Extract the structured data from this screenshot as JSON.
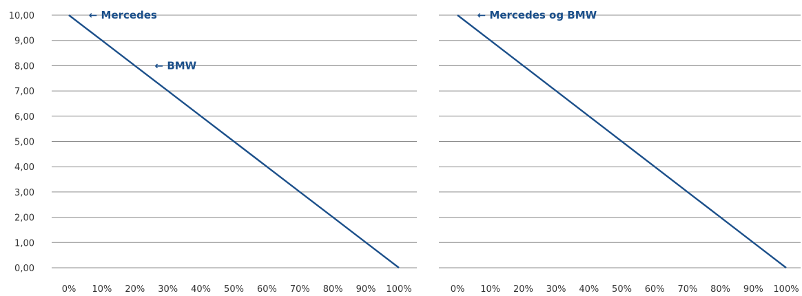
{
  "chart_data": [
    {
      "type": "line",
      "title": "",
      "xlabel": "",
      "ylabel": "",
      "x": [
        0,
        10,
        20,
        30,
        40,
        50,
        60,
        70,
        80,
        90,
        100
      ],
      "x_tick_labels": [
        "0%",
        "10%",
        "20%",
        "30%",
        "40%",
        "50%",
        "60%",
        "70%",
        "80%",
        "90%",
        "100%"
      ],
      "y_tick_labels": [
        "0,00",
        "1,00",
        "2,00",
        "3,00",
        "4,00",
        "5,00",
        "6,00",
        "7,00",
        "8,00",
        "9,00",
        "10,00"
      ],
      "ylim": [
        0,
        10
      ],
      "xlim": [
        0,
        100
      ],
      "grid": true,
      "series": [
        {
          "values": [
            10,
            9,
            8,
            7,
            6,
            5,
            4,
            3,
            2,
            1,
            0
          ]
        }
      ],
      "annotations": [
        {
          "text": "← Mercedes",
          "x": 6,
          "y": 10
        },
        {
          "text": "← BMW",
          "x": 26,
          "y": 8
        }
      ]
    },
    {
      "type": "line",
      "title": "",
      "xlabel": "",
      "ylabel": "",
      "x": [
        0,
        10,
        20,
        30,
        40,
        50,
        60,
        70,
        80,
        90,
        100
      ],
      "x_tick_labels": [
        "0%",
        "10%",
        "20%",
        "30%",
        "40%",
        "50%",
        "60%",
        "70%",
        "80%",
        "90%",
        "100%"
      ],
      "ylim": [
        0,
        10
      ],
      "xlim": [
        0,
        100
      ],
      "grid": true,
      "series": [
        {
          "values": [
            10,
            9,
            8,
            7,
            6,
            5,
            4,
            3,
            2,
            1,
            0
          ]
        }
      ],
      "annotations": [
        {
          "text": "← Mercedes og BMW",
          "x": 6,
          "y": 10
        }
      ]
    }
  ],
  "colors": {
    "line": "#1b4f8a",
    "annotation": "#1b4f8a",
    "grid": "#8c8c8c",
    "tick_text": "#333333"
  }
}
